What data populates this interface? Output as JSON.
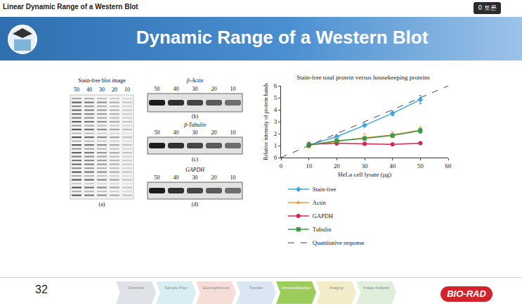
{
  "header": {
    "title": "Linear Dynamic Range of a Western Blot",
    "button": "0 토론"
  },
  "slide": {
    "title": "Dynamic Range of a Western Blot",
    "page": 32,
    "logo": "BIO-RAD",
    "steps": [
      "Overview",
      "Sample Prep",
      "Electrophoresis",
      "Transfer",
      "Immunodetection",
      "Imaging",
      "Image Analysis"
    ]
  },
  "blots": [
    {
      "title": "Stain-free blot image",
      "lanes": [
        50,
        40,
        30,
        20,
        10
      ],
      "label": "(a)"
    },
    {
      "title": "β-Actin",
      "lanes": [
        50,
        40,
        30,
        20,
        10
      ],
      "label": "(b)"
    },
    {
      "title": "β-Tubulin",
      "lanes": [
        50,
        40,
        30,
        20,
        10
      ],
      "label": "(c)"
    },
    {
      "title": "GAPDH",
      "lanes": [
        50,
        40,
        30,
        20,
        10
      ],
      "label": "(d)"
    }
  ],
  "chart_data": {
    "type": "line",
    "title": "Stain-free total protein versus housekeeping proteins",
    "x_label": "HeLa cell lysate (μg)",
    "y_label": "Relative intensity of protein bands",
    "xlim": [
      0,
      60
    ],
    "xticks": [
      0,
      10,
      20,
      30,
      40,
      50,
      60
    ],
    "ylim": [
      0,
      6
    ],
    "yticks": [
      0,
      1,
      2,
      3,
      4,
      5,
      6
    ],
    "grid": false,
    "legend": "bottom",
    "series": [
      {
        "name": "Stain-free",
        "color": "#3aa7e0",
        "marker": "diamond",
        "line_style": "solid",
        "x": [
          10,
          20,
          30,
          40,
          50
        ],
        "values": [
          1.05,
          1.75,
          2.7,
          3.7,
          4.85
        ],
        "errors": [
          0.1,
          0.15,
          0.1,
          0.2,
          0.35
        ]
      },
      {
        "name": "Actin",
        "color": "#f39a3a",
        "marker": "triangle-up",
        "line_style": "solid",
        "x": [
          10,
          20,
          30,
          40,
          50
        ],
        "values": [
          1.05,
          1.35,
          1.65,
          1.9,
          2.3
        ],
        "errors": [
          0.25,
          0.3,
          0.35,
          0.25,
          0.25
        ]
      },
      {
        "name": "GAPDH",
        "color": "#d7264b",
        "marker": "circle",
        "line_style": "solid",
        "x": [
          10,
          20,
          30,
          40,
          50
        ],
        "values": [
          1.1,
          1.2,
          1.15,
          1.1,
          1.2
        ],
        "errors": [
          0.15,
          0.15,
          0.1,
          0.05,
          0.1
        ]
      },
      {
        "name": "Tubulin",
        "color": "#3a9a4a",
        "marker": "square",
        "line_style": "solid",
        "x": [
          10,
          20,
          30,
          40,
          50
        ],
        "values": [
          1.05,
          1.4,
          1.6,
          1.85,
          2.25
        ],
        "errors": [
          0.2,
          0.1,
          0.1,
          0.1,
          0.2
        ]
      },
      {
        "name": "Quantitative response",
        "color": "#444444",
        "line_style": "dashed",
        "x": [
          0,
          60
        ],
        "values": [
          0,
          6
        ]
      }
    ]
  }
}
